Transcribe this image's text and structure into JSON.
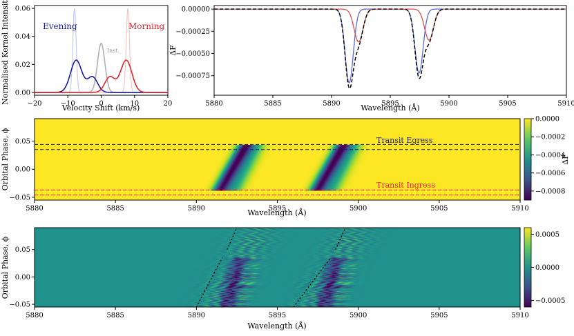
{
  "kernel_panel": {
    "xlabel": "Velocity Shift (km/s)",
    "ylabel": "Normalised Kernel Intensity",
    "xticks": [
      "−20",
      "−10",
      "0",
      "10",
      "20"
    ],
    "yticks": [
      "0.00",
      "0.02",
      "0.04",
      "0.06"
    ],
    "label_evening": "Evening",
    "label_morning": "Morning",
    "label_inst": "Inst.",
    "color_evening": "#1a1aa8",
    "color_morning": "#e0262b",
    "color_inst": "#b0b0b0"
  },
  "spectrum_panel": {
    "xlabel": "Wavelength (Å)",
    "ylabel": "ΔF",
    "xticks": [
      "5880",
      "5885",
      "5890",
      "5895",
      "5900",
      "5905",
      "5910"
    ],
    "yticks": [
      "0.00000",
      "−0.00025",
      "−0.00050",
      "−0.00075"
    ]
  },
  "map_panel": {
    "xlabel": "Wavelength (Å)",
    "ylabel": "Orbital Phase, ϕ",
    "xticks": [
      "5880",
      "5885",
      "5890",
      "5895",
      "5900",
      "5905",
      "5910"
    ],
    "yticks": [
      "0.05",
      "0.00",
      "−0.05"
    ],
    "egress_label": "Transit Egress",
    "ingress_label": "Transit Ingress",
    "cbar_label": "ΔF",
    "cbar_ticks": [
      "0.0000",
      "−0.0002",
      "−0.0004",
      "−0.0006",
      "−0.0008"
    ]
  },
  "residual_panel": {
    "xlabel": "Wavelength (Å)",
    "ylabel": "Orbital Phase, ϕ",
    "xticks": [
      "5880",
      "5885",
      "5890",
      "5895",
      "5900",
      "5905",
      "5910"
    ],
    "yticks": [
      "0.05",
      "0.00",
      "−0.05"
    ],
    "cbar_ticks": [
      "0.0005",
      "0.0000",
      "−0.0005"
    ]
  },
  "chart_data": [
    {
      "type": "line",
      "panel": "kernel",
      "xlim": [
        -20,
        20
      ],
      "ylim": [
        -0.002,
        0.062
      ],
      "series": [
        {
          "name": "Evening",
          "color": "#1a1aa8",
          "components": [
            {
              "center": -7.5,
              "width": 1.7,
              "amp": 0.023
            },
            {
              "center": -2.6,
              "width": 1.5,
              "amp": 0.011
            }
          ]
        },
        {
          "name": "Morning",
          "color": "#e0262b",
          "components": [
            {
              "center": 7.5,
              "width": 1.7,
              "amp": 0.023
            },
            {
              "center": 2.6,
              "width": 1.5,
              "amp": 0.011
            }
          ]
        },
        {
          "name": "Inst.",
          "color": "#b0b0b0",
          "components": [
            {
              "center": 0,
              "width": 1.1,
              "amp": 0.035
            }
          ]
        },
        {
          "name": "",
          "color": "#c7c9ee",
          "components": [
            {
              "center": -8,
              "width": 0.5,
              "amp": 0.06
            }
          ]
        },
        {
          "name": "",
          "color": "#f4c6c6",
          "components": [
            {
              "center": 8,
              "width": 0.5,
              "amp": 0.06
            }
          ]
        }
      ]
    },
    {
      "type": "line",
      "panel": "spectrum",
      "xlim": [
        5880,
        5910
      ],
      "ylim": [
        -0.00097,
        4e-05
      ],
      "series": [
        {
          "name": "",
          "color": "#5a6ad8",
          "style": "solid",
          "lines": [
            {
              "center": 5891.5,
              "depth": 0.00083,
              "width": 0.35
            },
            {
              "center": 5897.45,
              "depth": 0.00072,
              "width": 0.35
            }
          ]
        },
        {
          "name": "",
          "color": "#e05050",
          "style": "solid",
          "lines": [
            {
              "center": 5892.3,
              "depth": 0.00037,
              "width": 0.38
            },
            {
              "center": 5898.3,
              "depth": 0.00035,
              "width": 0.38
            }
          ]
        },
        {
          "name": "",
          "color": "#000000",
          "style": "dashed",
          "lines": [
            {
              "center": 5891.5,
              "depth": 0.00085,
              "width": 0.35
            },
            {
              "center": 5892.3,
              "depth": 0.00037,
              "width": 0.38
            },
            {
              "center": 5897.45,
              "depth": 0.00075,
              "width": 0.35
            },
            {
              "center": 5898.3,
              "depth": 0.00035,
              "width": 0.38
            }
          ]
        }
      ]
    },
    {
      "type": "heatmap",
      "panel": "phase_map",
      "xlim": [
        5880,
        5910
      ],
      "ylim": [
        -0.055,
        0.09
      ],
      "clim": [
        -0.0009,
        0.0
      ],
      "lines": [
        5890.95,
        5896.95
      ],
      "transit_phase": [
        -0.038,
        0.043
      ],
      "egress_lines": [
        0.035,
        0.044
      ],
      "ingress_lines": [
        -0.037,
        -0.046
      ]
    },
    {
      "type": "heatmap",
      "panel": "residuals",
      "xlim": [
        5880,
        5910
      ],
      "ylim": [
        -0.055,
        0.09
      ],
      "clim": [
        -0.0006,
        0.0006
      ],
      "lines": [
        5890.95,
        5896.95
      ],
      "transit_phase": [
        -0.055,
        0.035
      ]
    }
  ]
}
